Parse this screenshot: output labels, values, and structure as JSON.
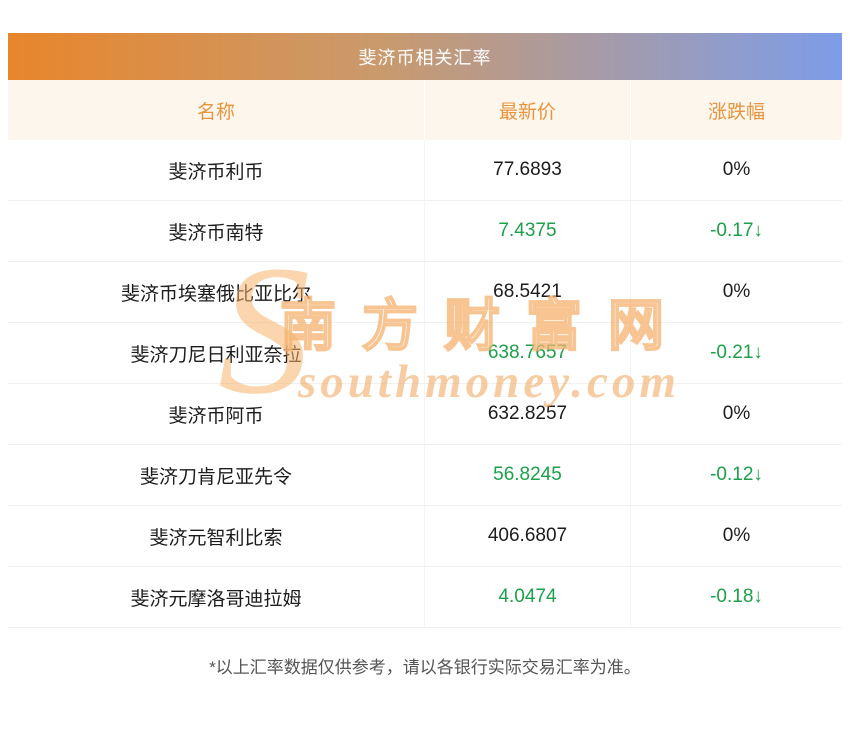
{
  "chart_data": {
    "type": "table",
    "title": "斐济币相关汇率",
    "columns": [
      "名称",
      "最新价",
      "涨跌幅"
    ],
    "rows": [
      {
        "name": "斐济币利币",
        "price": "77.6893",
        "change": "0%",
        "trend": "flat"
      },
      {
        "name": "斐济币南特",
        "price": "7.4375",
        "change": "-0.17↓",
        "trend": "down"
      },
      {
        "name": "斐济币埃塞俄比亚比尔",
        "price": "68.5421",
        "change": "0%",
        "trend": "flat"
      },
      {
        "name": "斐济刀尼日利亚奈拉",
        "price": "638.7657",
        "change": "-0.21↓",
        "trend": "down"
      },
      {
        "name": "斐济币阿币",
        "price": "632.8257",
        "change": "0%",
        "trend": "flat"
      },
      {
        "name": "斐济刀肯尼亚先令",
        "price": "56.8245",
        "change": "-0.12↓",
        "trend": "down"
      },
      {
        "name": "斐济元智利比索",
        "price": "406.6807",
        "change": "0%",
        "trend": "flat"
      },
      {
        "name": "斐济元摩洛哥迪拉姆",
        "price": "4.0474",
        "change": "-0.18↓",
        "trend": "down"
      }
    ]
  },
  "footer": {
    "note": "*以上汇率数据仅供参考，请以各银行实际交易汇率为准。"
  },
  "watermark": {
    "letter": "S",
    "cn": "南方财富网",
    "en": "southmoney.com"
  },
  "colors": {
    "title_gradient_left": "#e8862b",
    "title_gradient_right": "#7e9ce9",
    "header_bg": "#fdf6ec",
    "header_text": "#e8953f",
    "down_green": "#1ca049"
  }
}
